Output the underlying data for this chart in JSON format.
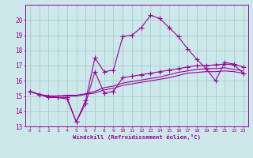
{
  "bg_color": "#cce8ea",
  "grid_color": "#aacccc",
  "line_color": "#990099",
  "xlabel": "Windchill (Refroidissement éolien,°C)",
  "xlim": [
    -0.5,
    23.5
  ],
  "ylim": [
    13,
    21
  ],
  "yticks": [
    13,
    14,
    15,
    16,
    17,
    18,
    19,
    20
  ],
  "xticks": [
    0,
    1,
    2,
    3,
    4,
    5,
    6,
    7,
    8,
    9,
    10,
    11,
    12,
    13,
    14,
    15,
    16,
    17,
    18,
    19,
    20,
    21,
    22,
    23
  ],
  "line_jagged_x": [
    0,
    1,
    2,
    3,
    4,
    5,
    6,
    7,
    8,
    9,
    10,
    11,
    12,
    13,
    14,
    15,
    16,
    17,
    18,
    19,
    20,
    21,
    22,
    23
  ],
  "line_jagged_y": [
    15.3,
    15.1,
    15.0,
    14.9,
    14.8,
    13.3,
    14.7,
    17.5,
    16.6,
    16.7,
    18.9,
    19.0,
    19.5,
    20.3,
    20.1,
    19.5,
    18.9,
    18.1,
    17.4,
    16.8,
    16.0,
    17.2,
    17.1,
    16.9
  ],
  "line_smooth1_x": [
    0,
    1,
    2,
    3,
    4,
    5,
    6,
    7,
    8,
    9,
    10,
    11,
    12,
    13,
    14,
    15,
    16,
    17,
    18,
    19,
    20,
    21,
    22,
    23
  ],
  "line_smooth1_y": [
    15.3,
    15.1,
    15.0,
    15.0,
    15.0,
    15.0,
    15.1,
    15.2,
    15.4,
    15.5,
    15.7,
    15.8,
    15.9,
    16.0,
    16.1,
    16.2,
    16.35,
    16.5,
    16.55,
    16.6,
    16.6,
    16.65,
    16.6,
    16.5
  ],
  "line_smooth2_x": [
    0,
    1,
    2,
    3,
    4,
    5,
    6,
    7,
    8,
    9,
    10,
    11,
    12,
    13,
    14,
    15,
    16,
    17,
    18,
    19,
    20,
    21,
    22,
    23
  ],
  "line_smooth2_y": [
    15.3,
    15.1,
    15.0,
    15.0,
    15.05,
    15.05,
    15.15,
    15.3,
    15.55,
    15.65,
    15.85,
    15.95,
    16.05,
    16.15,
    16.25,
    16.4,
    16.55,
    16.65,
    16.75,
    16.8,
    16.8,
    16.85,
    16.75,
    16.65
  ],
  "line_marker_x": [
    0,
    1,
    2,
    3,
    4,
    5,
    6,
    7,
    8,
    9,
    10,
    11,
    12,
    13,
    14,
    15,
    16,
    17,
    18,
    19,
    20,
    21,
    22,
    23
  ],
  "line_marker_y": [
    15.3,
    15.1,
    14.9,
    14.9,
    14.9,
    13.3,
    14.5,
    16.6,
    15.2,
    15.3,
    16.2,
    16.3,
    16.4,
    16.5,
    16.6,
    16.7,
    16.8,
    16.9,
    17.0,
    17.0,
    17.05,
    17.1,
    17.05,
    16.5
  ]
}
